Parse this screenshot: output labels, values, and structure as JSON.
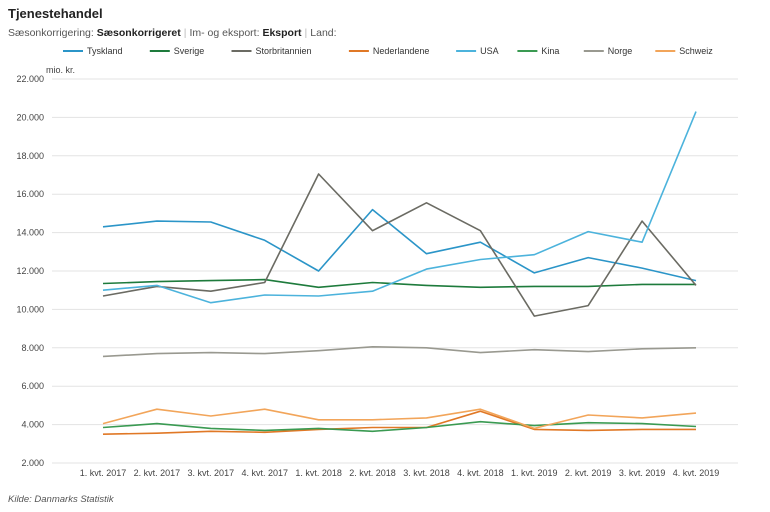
{
  "title": "Tjenestehandel",
  "filters": {
    "label1": "Sæsonkorrigering:",
    "value1": "Sæsonkorrigeret",
    "label2": "Im- og eksport:",
    "value2": "Eksport",
    "label3": "Land:"
  },
  "source": "Kilde: Danmarks Statistik",
  "chart_data": {
    "type": "line",
    "unit_label": "mio. kr.",
    "ylim": [
      2000,
      22000
    ],
    "yticks": [
      "2.000",
      "4.000",
      "6.000",
      "8.000",
      "10.000",
      "12.000",
      "14.000",
      "16.000",
      "18.000",
      "20.000",
      "22.000"
    ],
    "categories": [
      "1. kvt. 2017",
      "2. kvt. 2017",
      "3. kvt. 2017",
      "4. kvt. 2017",
      "1. kvt. 2018",
      "2. kvt. 2018",
      "3. kvt. 2018",
      "4. kvt. 2018",
      "1. kvt. 2019",
      "2. kvt. 2019",
      "3. kvt. 2019",
      "4. kvt. 2019"
    ],
    "grid": true,
    "legend_position": "top",
    "series": [
      {
        "name": "Tyskland",
        "color": "#2b95c8",
        "values": [
          14300,
          14600,
          14550,
          13600,
          12000,
          15200,
          12900,
          13500,
          11900,
          12700,
          12150,
          11500
        ]
      },
      {
        "name": "Sverige",
        "color": "#1e7b3c",
        "values": [
          11350,
          11450,
          11500,
          11550,
          11150,
          11400,
          11250,
          11150,
          11200,
          11200,
          11300,
          11300
        ]
      },
      {
        "name": "Storbritannien",
        "color": "#6b6b63",
        "values": [
          10700,
          11200,
          10950,
          11400,
          17050,
          14100,
          15550,
          14100,
          9650,
          10200,
          14600,
          11250
        ]
      },
      {
        "name": "Nederlandene",
        "color": "#e07826",
        "values": [
          3500,
          3550,
          3650,
          3600,
          3750,
          3850,
          3850,
          4700,
          3750,
          3700,
          3750,
          3750
        ]
      },
      {
        "name": "USA",
        "color": "#4cb3dc",
        "values": [
          11000,
          11250,
          10350,
          10750,
          10700,
          10950,
          12100,
          12600,
          12850,
          14050,
          13500,
          20300
        ]
      },
      {
        "name": "Kina",
        "color": "#3a9a52",
        "values": [
          3850,
          4050,
          3800,
          3700,
          3800,
          3650,
          3850,
          4150,
          3950,
          4100,
          4050,
          3900
        ]
      },
      {
        "name": "Norge",
        "color": "#999990",
        "values": [
          7550,
          7700,
          7750,
          7700,
          7850,
          8050,
          8000,
          7750,
          7900,
          7800,
          7950,
          8000
        ]
      },
      {
        "name": "Schweiz",
        "color": "#f2a55a",
        "values": [
          4050,
          4800,
          4450,
          4800,
          4250,
          4250,
          4350,
          4800,
          3800,
          4500,
          4350,
          4600
        ]
      }
    ]
  }
}
